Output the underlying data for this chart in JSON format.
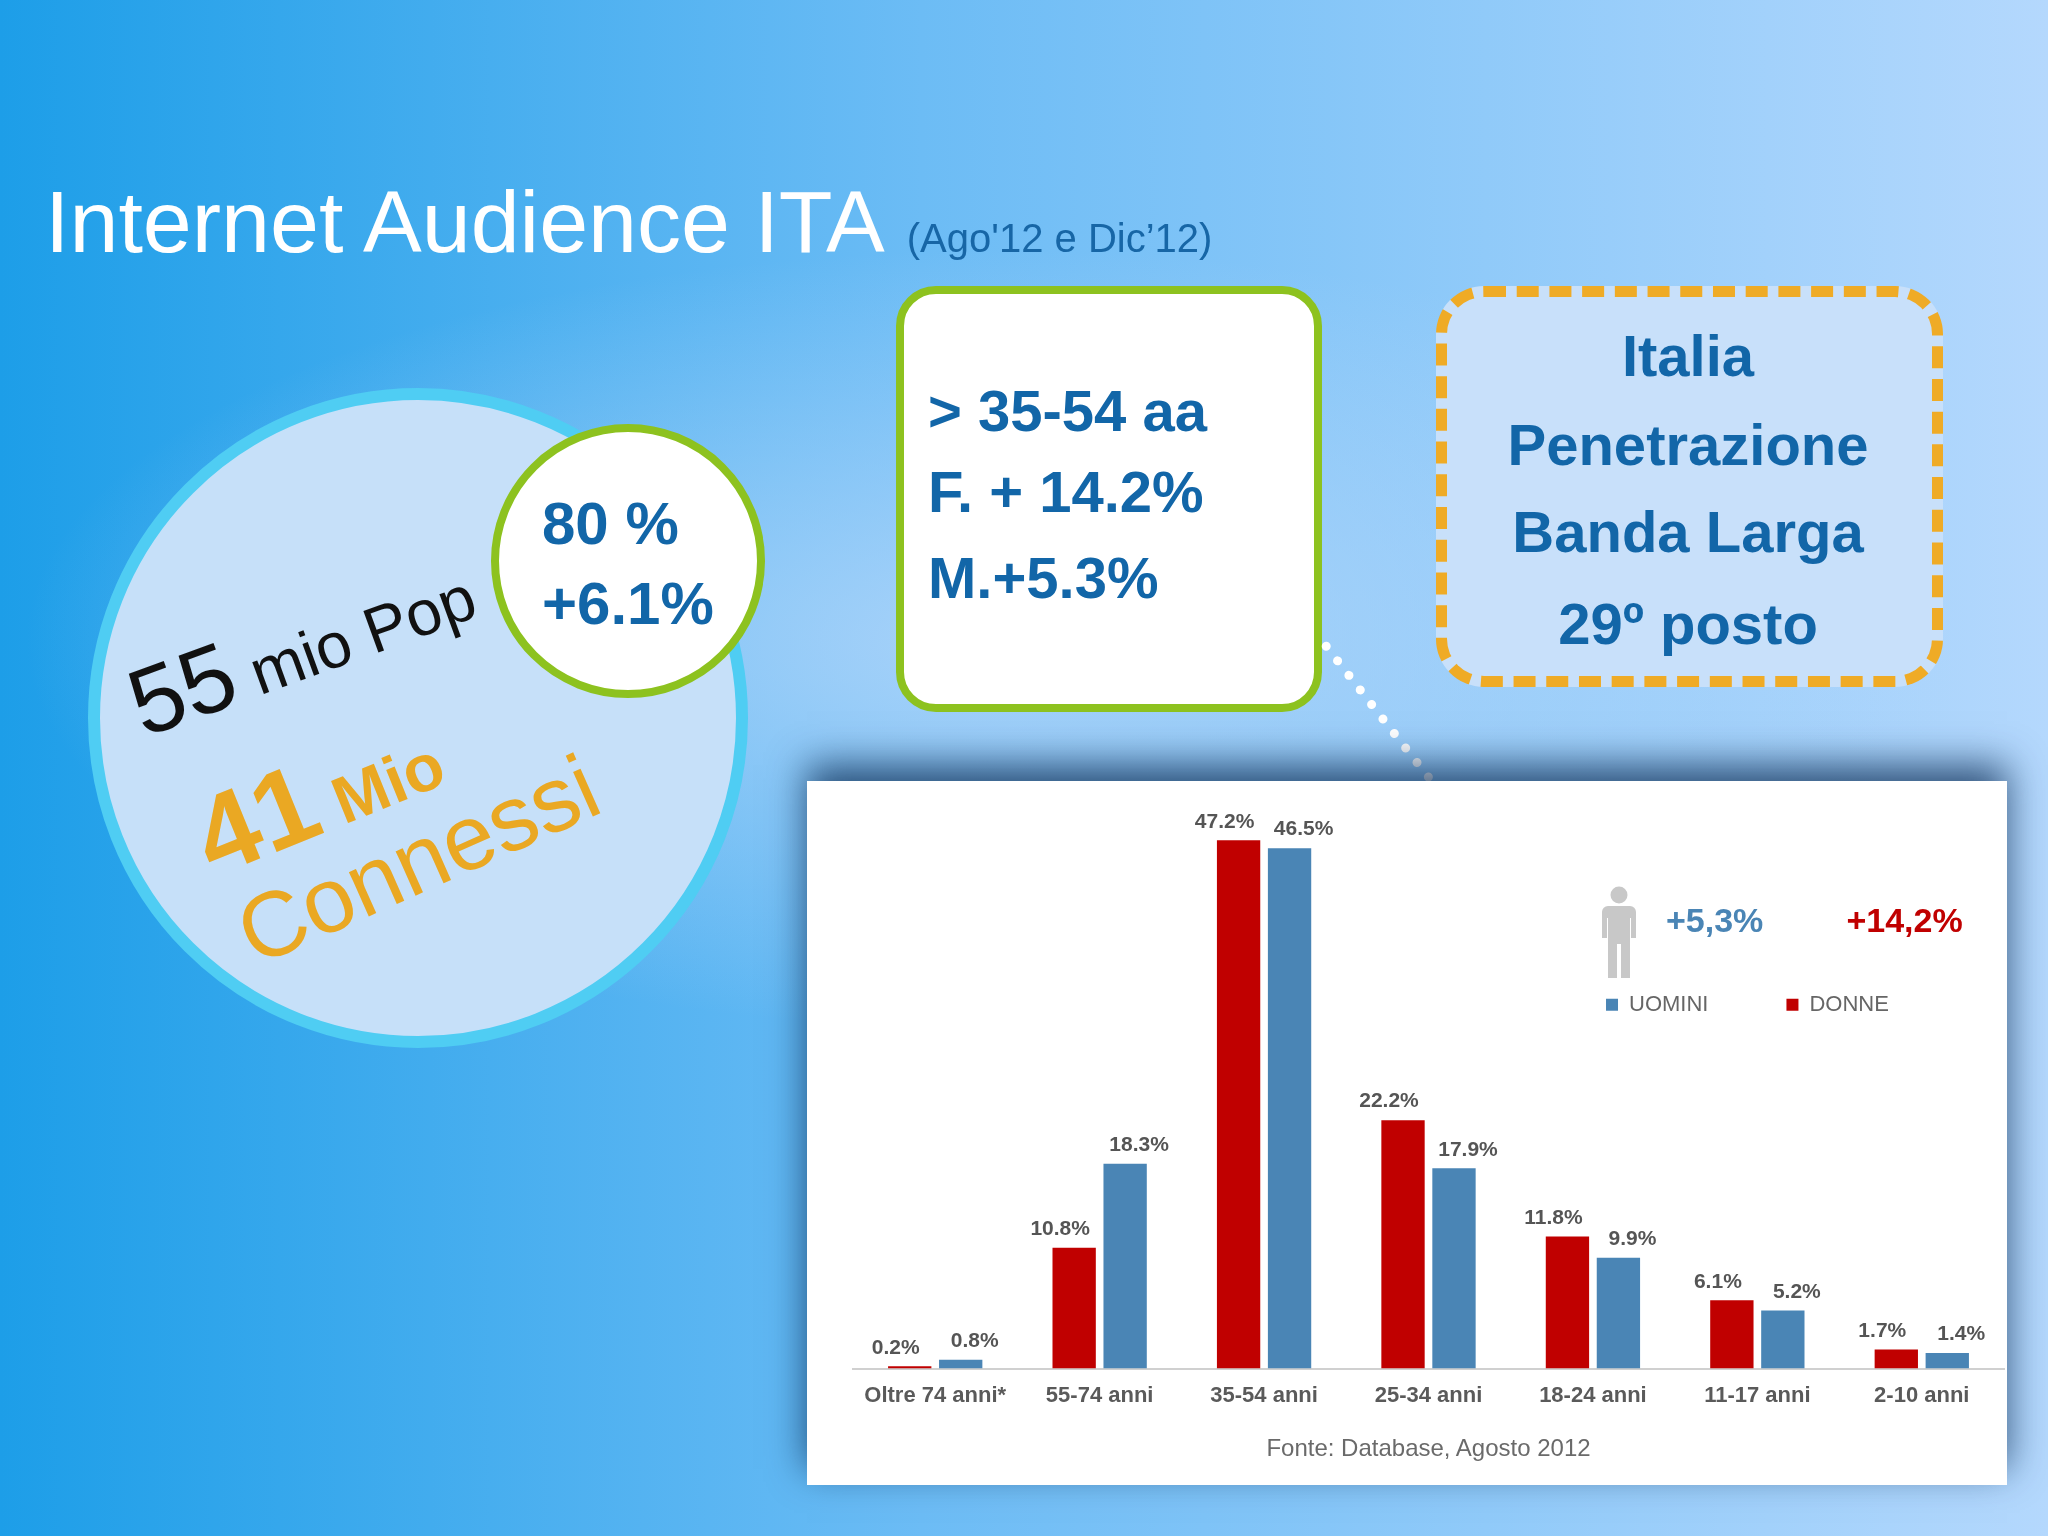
{
  "chart_data": [
    {
      "type": "other",
      "title": "Internet Audience ITA",
      "subtitle": "(Ago'12 e Dic’12)",
      "annotations": [
        "55 mio Pop",
        "41 Mio",
        "Connessi",
        "80 %",
        "+6.1%",
        "> 35-54 aa",
        "F. + 14.2%",
        "M.+5.3%",
        "Italia",
        "Penetrazione",
        "Banda Larga",
        "29º posto"
      ]
    },
    {
      "type": "bar",
      "categories": [
        "Oltre 74 anni*",
        "55-74 anni",
        "35-54 anni",
        "25-34 anni",
        "18-24 anni",
        "11-17 anni",
        "2-10 anni"
      ],
      "series": [
        {
          "name": "DONNE",
          "color": "#c00000",
          "values": [
            0.2,
            10.8,
            47.2,
            22.2,
            11.8,
            6.1,
            1.7
          ],
          "value_labels": [
            "0.2%",
            "10.8%",
            "47.2%",
            "22.2%",
            "11.8%",
            "6.1%",
            "1.7%"
          ]
        },
        {
          "name": "UOMINI",
          "color": "#4a85b5",
          "values": [
            0.8,
            18.3,
            46.5,
            17.9,
            9.9,
            5.2,
            1.4
          ],
          "value_labels": [
            "0.8%",
            "18.3%",
            "46.5%",
            "17.9%",
            "9.9%",
            "5.2%",
            "1.4%"
          ]
        }
      ],
      "legend": "top right",
      "tick_labels": "x",
      "annotations": [
        "+14,2%",
        "+5,3%",
        "Fonte: Database, Agosto 2012"
      ]
    }
  ]
}
